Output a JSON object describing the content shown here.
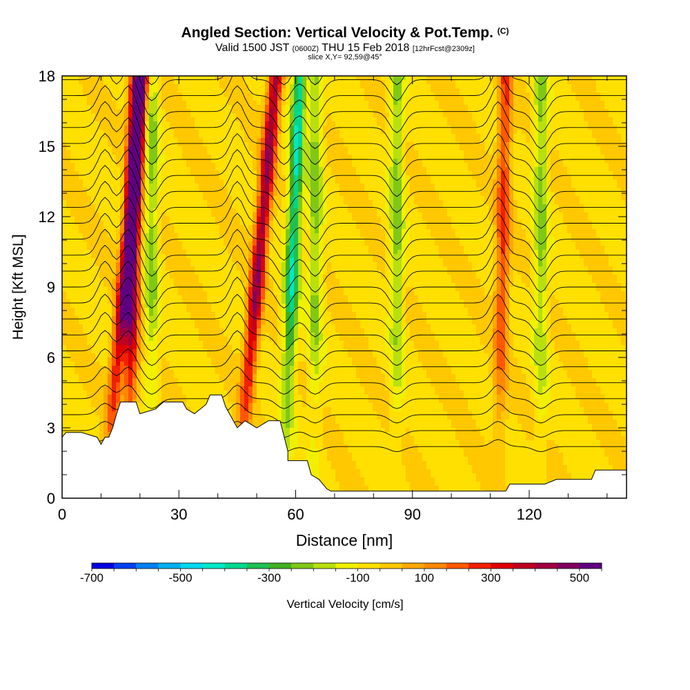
{
  "header": {
    "title_main": "Angled Section: Vertical Velocity & Pot.Temp.",
    "title_tag": "(C)",
    "valid_prefix": "Valid 1500 JST",
    "valid_utc": "(0600Z)",
    "valid_date": "THU 15 Feb 2018",
    "valid_fcst": "[12hrFcst@2309z]",
    "slice": "slice X,Y= 92,59@45°"
  },
  "chart_data": {
    "type": "heatmap",
    "xlabel": "Distance [nm]",
    "ylabel": "Height [Kft MSL]",
    "xlim": [
      0,
      145
    ],
    "ylim": [
      0,
      18
    ],
    "x_ticks": [
      0,
      30,
      60,
      90,
      120
    ],
    "y_ticks": [
      0,
      3,
      6,
      9,
      12,
      15,
      18
    ],
    "colorbar": {
      "label": "Vertical Velocity [cm/s]",
      "tick_labels": [
        "-700",
        "-500",
        "-300",
        "-100",
        "100",
        "300",
        "500"
      ],
      "colors": [
        "#0000e0",
        "#0040f0",
        "#0080f0",
        "#00b0f0",
        "#00d8f0",
        "#00e8c8",
        "#00d890",
        "#20c050",
        "#40b020",
        "#80c818",
        "#b8e010",
        "#f0f000",
        "#ffe000",
        "#ffc800",
        "#ffa800",
        "#ff8800",
        "#ff5800",
        "#f02000",
        "#e00000",
        "#c00020",
        "#a00040",
        "#800060",
        "#600080"
      ]
    },
    "features": {
      "updraft_cores_nm": [
        11,
        17,
        45,
        112
      ],
      "downdraft_cores_nm": [
        23,
        57,
        65,
        86,
        123
      ],
      "terrain_profile_nm_kft": [
        [
          0,
          2.6
        ],
        [
          1,
          2.8
        ],
        [
          5,
          2.8
        ],
        [
          9,
          2.6
        ],
        [
          10,
          2.3
        ],
        [
          11,
          2.6
        ],
        [
          12,
          2.6
        ],
        [
          13,
          3.0
        ],
        [
          14,
          3.6
        ],
        [
          15,
          4.1
        ],
        [
          19,
          4.1
        ],
        [
          20,
          3.6
        ],
        [
          24,
          3.8
        ],
        [
          26,
          4.1
        ],
        [
          31,
          4.1
        ],
        [
          32,
          3.8
        ],
        [
          34,
          3.6
        ],
        [
          37,
          4.0
        ],
        [
          38,
          4.4
        ],
        [
          41,
          4.4
        ],
        [
          42,
          3.9
        ],
        [
          45,
          3.0
        ],
        [
          47,
          3.3
        ],
        [
          50,
          3.0
        ],
        [
          53,
          3.3
        ],
        [
          56,
          3.3
        ],
        [
          58,
          2.0
        ],
        [
          58,
          1.6
        ],
        [
          63,
          1.6
        ],
        [
          64,
          1.0
        ],
        [
          66,
          0.8
        ],
        [
          68,
          0.4
        ],
        [
          69,
          0.3
        ],
        [
          114,
          0.3
        ],
        [
          115,
          0.6
        ],
        [
          124,
          0.6
        ],
        [
          127,
          0.8
        ],
        [
          136,
          0.8
        ],
        [
          137,
          1.2
        ],
        [
          145,
          1.2
        ]
      ]
    }
  }
}
